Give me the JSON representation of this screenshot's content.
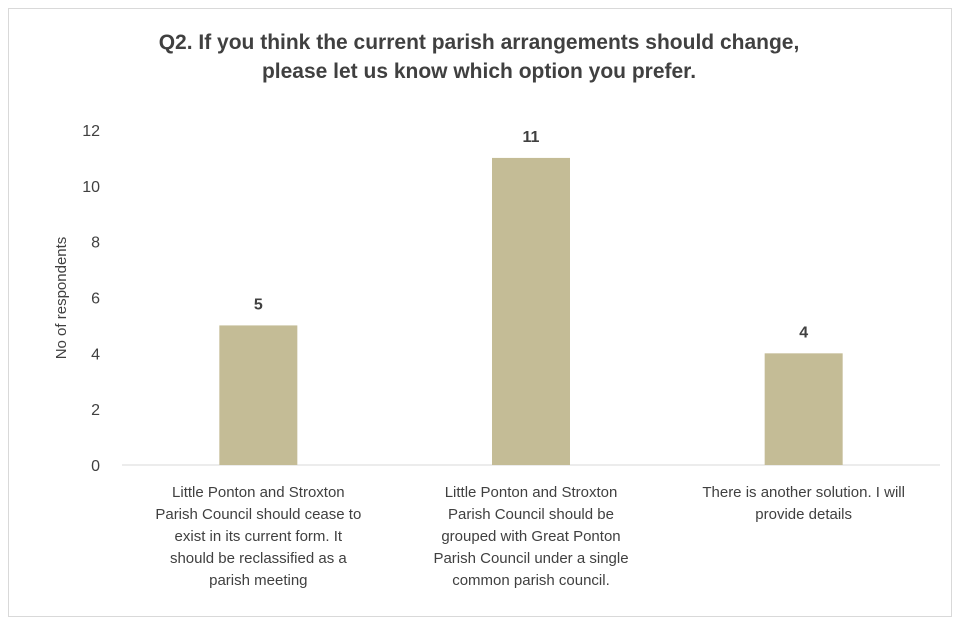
{
  "chart_data": {
    "type": "bar",
    "title_lines": [
      "Q2. If you think the current parish arrangements should change,",
      "please let us know which option you prefer."
    ],
    "ylabel": "No of respondents",
    "xlabel": "",
    "ylim": [
      0,
      12
    ],
    "yticks": [
      0,
      2,
      4,
      6,
      8,
      10,
      12
    ],
    "categories": [
      "Little Ponton and Stroxton Parish Council should cease to exist in its current form. It should be reclassified as a parish meeting",
      "Little Ponton and Stroxton Parish Council should be grouped with Great Ponton Parish Council under a single common parish council.",
      "There is another solution. I will provide details"
    ],
    "category_lines": [
      [
        "Little Ponton and Stroxton",
        "Parish Council should cease to",
        "exist in its current form. It",
        "should be reclassified as a",
        "parish meeting"
      ],
      [
        "Little Ponton and Stroxton",
        "Parish Council should be",
        "grouped with Great Ponton",
        "Parish Council under a single",
        "common parish council."
      ],
      [
        "There is another solution. I will",
        "provide details"
      ]
    ],
    "values": [
      5,
      11,
      4
    ],
    "data_labels": [
      "5",
      "11",
      "4"
    ],
    "bar_color": "#c4bc96",
    "grid": false,
    "legend": "none"
  }
}
